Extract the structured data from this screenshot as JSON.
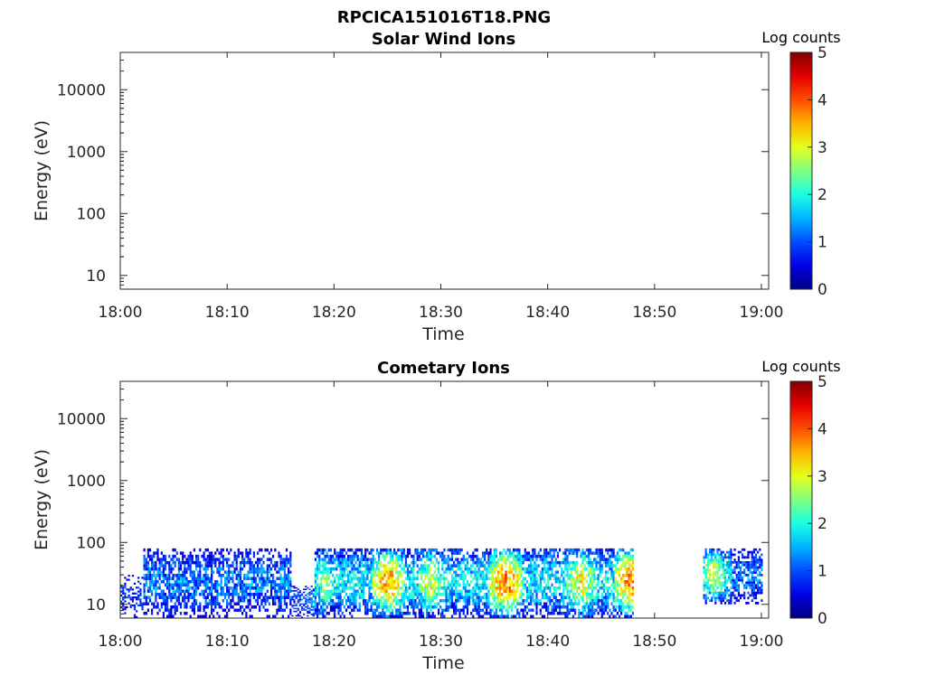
{
  "figure": {
    "title": "RPCICA151016T18.PNG"
  },
  "chart_data": [
    {
      "type": "heatmap",
      "title": "Solar Wind Ions",
      "xlabel": "Time",
      "ylabel": "Energy (eV)",
      "x_ticks": [
        "18:00",
        "18:10",
        "18:20",
        "18:30",
        "18:40",
        "18:50",
        "19:00"
      ],
      "xlim": [
        "18:00",
        "19:00"
      ],
      "y_scale": "log",
      "y_ticks": [
        10,
        100,
        1000,
        10000
      ],
      "y_tick_labels": [
        "10",
        "100",
        "1000",
        "10000"
      ],
      "ylim": [
        6,
        40000
      ],
      "colorbar": {
        "label": "Log counts",
        "min": 0,
        "max": 5,
        "ticks": [
          "0",
          "1",
          "2",
          "3",
          "4",
          "5"
        ],
        "colormap": "jet"
      },
      "cells": []
    },
    {
      "type": "heatmap",
      "title": "Cometary Ions",
      "xlabel": "Time",
      "ylabel": "Energy (eV)",
      "x_ticks": [
        "18:00",
        "18:10",
        "18:20",
        "18:30",
        "18:40",
        "18:50",
        "19:00"
      ],
      "xlim": [
        "18:00",
        "19:00"
      ],
      "y_scale": "log",
      "y_ticks": [
        10,
        100,
        1000,
        10000
      ],
      "y_tick_labels": [
        "10",
        "100",
        "1000",
        "10000"
      ],
      "ylim": [
        6,
        40000
      ],
      "colorbar": {
        "label": "Log counts",
        "min": 0,
        "max": 5,
        "ticks": [
          "0",
          "1",
          "2",
          "3",
          "4",
          "5"
        ],
        "colormap": "jet"
      },
      "data_bands": [
        {
          "start": "18:00",
          "end": "18:02",
          "energy_min": 6,
          "energy_max": 30,
          "log_counts": 1.0
        },
        {
          "start": "18:02",
          "end": "18:16",
          "energy_min": 6,
          "energy_max": 80,
          "log_counts": 1.5
        },
        {
          "start": "18:16",
          "end": "18:18",
          "energy_min": 6,
          "energy_max": 20,
          "log_counts": 1.2
        },
        {
          "start": "18:18",
          "end": "18:48",
          "energy_min": 6,
          "energy_max": 80,
          "log_counts": 2.0
        },
        {
          "start": "18:54.5",
          "end": "19:00",
          "energy_min": 10,
          "energy_max": 80,
          "log_counts": 1.5
        }
      ],
      "peaks": [
        {
          "time": "18:19",
          "log_counts": 2.6
        },
        {
          "time": "18:25",
          "log_counts": 3.6
        },
        {
          "time": "18:29",
          "log_counts": 3.0
        },
        {
          "time": "18:36",
          "log_counts": 3.8
        },
        {
          "time": "18:43",
          "log_counts": 3.2
        },
        {
          "time": "18:47.8",
          "log_counts": 3.8
        },
        {
          "time": "18:55.5",
          "log_counts": 3.0
        }
      ]
    }
  ]
}
